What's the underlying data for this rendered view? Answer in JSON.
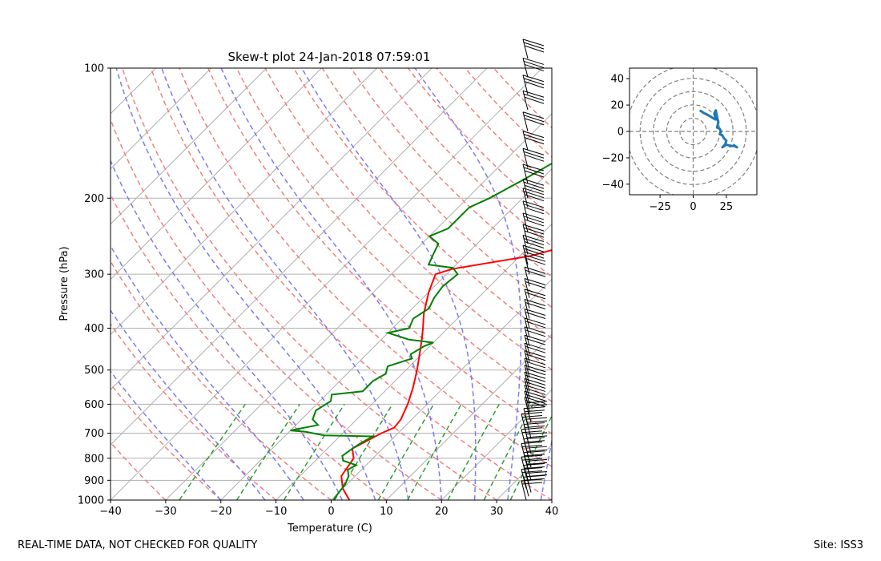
{
  "footer": {
    "left": "REAL-TIME DATA, NOT CHECKED FOR QUALITY",
    "right": "Site: ISS3"
  },
  "chart_data": [
    {
      "type": "skew-t",
      "title": "Skew-t plot 24-Jan-2018 07:59:01",
      "xlabel": "Temperature (C)",
      "ylabel": "Pressure (hPa)",
      "xlim": [
        -40,
        40
      ],
      "ylim": [
        1000,
        100
      ],
      "y_scale": "log",
      "xticks": [
        -40,
        -30,
        -20,
        -10,
        0,
        10,
        20,
        30,
        40
      ],
      "yticks": [
        100,
        200,
        300,
        400,
        500,
        600,
        700,
        800,
        900,
        1000
      ],
      "grid": true,
      "colors": {
        "temperature": "#ff0000",
        "dewpoint": "#008000",
        "dry_adiabats": "#f08080",
        "moist_adiabats": "#7b7bf0",
        "mixing_ratio": "#2ca02c",
        "isotherms": "#b0b0b0",
        "wind_barbs": "#000000"
      },
      "series": [
        {
          "name": "temperature",
          "points": [
            [
              1000,
              3.3
            ],
            [
              940,
              0
            ],
            [
              880,
              -2.5
            ],
            [
              800,
              -3.5
            ],
            [
              760,
              -5.5
            ],
            [
              700,
              -3
            ],
            [
              680,
              -1.7
            ],
            [
              650,
              -2
            ],
            [
              600,
              -3.5
            ],
            [
              550,
              -5.5
            ],
            [
              500,
              -8
            ],
            [
              450,
              -11
            ],
            [
              420,
              -13
            ],
            [
              400,
              -14.5
            ],
            [
              370,
              -17
            ],
            [
              330,
              -20
            ],
            [
              300,
              -22
            ],
            [
              292,
              -20
            ],
            [
              285,
              -16
            ],
            [
              272,
              -8
            ],
            [
              260,
              -4
            ],
            [
              245,
              1
            ],
            [
              230,
              3.5
            ],
            [
              200,
              9
            ],
            [
              180,
              14
            ],
            [
              160,
              17
            ],
            [
              150,
              19
            ],
            [
              140,
              21
            ],
            [
              130,
              24
            ],
            [
              120,
              27
            ],
            [
              110,
              30
            ],
            [
              100,
              35
            ]
          ]
        },
        {
          "name": "dewpoint",
          "points": [
            [
              1000,
              0.4
            ],
            [
              960,
              0
            ],
            [
              920,
              -0.3
            ],
            [
              880,
              -1.2
            ],
            [
              850,
              -2.5
            ],
            [
              830,
              -1.8
            ],
            [
              810,
              -5
            ],
            [
              790,
              -6
            ],
            [
              760,
              -5.5
            ],
            [
              740,
              -5
            ],
            [
              712,
              -4
            ],
            [
              708,
              -13
            ],
            [
              695,
              -17
            ],
            [
              690,
              -20
            ],
            [
              670,
              -16
            ],
            [
              650,
              -18
            ],
            [
              620,
              -19
            ],
            [
              590,
              -18
            ],
            [
              570,
              -19
            ],
            [
              560,
              -14
            ],
            [
              530,
              -14
            ],
            [
              510,
              -13
            ],
            [
              490,
              -14
            ],
            [
              470,
              -11
            ],
            [
              460,
              -12
            ],
            [
              440,
              -11
            ],
            [
              432,
              -10
            ],
            [
              425,
              -15
            ],
            [
              410,
              -20
            ],
            [
              400,
              -17
            ],
            [
              380,
              -18
            ],
            [
              360,
              -17
            ],
            [
              340,
              -18
            ],
            [
              320,
              -18.5
            ],
            [
              300,
              -18
            ],
            [
              290,
              -20
            ],
            [
              285,
              -25
            ],
            [
              270,
              -26
            ],
            [
              255,
              -27
            ],
            [
              245,
              -30
            ],
            [
              235,
              -28
            ],
            [
              220,
              -28
            ],
            [
              210,
              -28
            ],
            [
              200,
              -26
            ],
            [
              180,
              -23
            ],
            [
              160,
              -20
            ],
            [
              140,
              -16
            ],
            [
              120,
              -12
            ],
            [
              100,
              -6
            ]
          ]
        }
      ],
      "wind_barbs": {
        "description": "wind barbs along right edge from 1000 to ~95 hPa",
        "pressures": [
          1000,
          980,
          960,
          940,
          920,
          900,
          880,
          860,
          840,
          820,
          800,
          780,
          760,
          740,
          720,
          700,
          680,
          660,
          640,
          620,
          600,
          580,
          560,
          540,
          520,
          500,
          480,
          460,
          440,
          420,
          400,
          380,
          360,
          340,
          320,
          300,
          285,
          270,
          255,
          240,
          225,
          210,
          200,
          185,
          170,
          155,
          140,
          125,
          115,
          105,
          95
        ]
      }
    },
    {
      "type": "hodograph",
      "xlim": [
        -48,
        48
      ],
      "ylim": [
        -48,
        48
      ],
      "xticks": [
        -25,
        0,
        25
      ],
      "yticks": [
        -40,
        -20,
        0,
        20,
        40
      ],
      "rings": [
        10,
        20,
        30,
        40,
        50
      ],
      "series": [
        {
          "name": "hodograph",
          "color": "#1f77b4",
          "points": [
            [
              5,
              16
            ],
            [
              8,
              14
            ],
            [
              12,
              12
            ],
            [
              15,
              10
            ],
            [
              17,
              9
            ],
            [
              16,
              14
            ],
            [
              17,
              16
            ],
            [
              18,
              11
            ],
            [
              19,
              7
            ],
            [
              18,
              3
            ],
            [
              20,
              2
            ],
            [
              21,
              0
            ],
            [
              20,
              -2
            ],
            [
              22,
              -3
            ],
            [
              23,
              -5
            ],
            [
              25,
              -7
            ],
            [
              24,
              -10
            ],
            [
              22,
              -12
            ],
            [
              25,
              -10
            ],
            [
              28,
              -11
            ],
            [
              31,
              -11
            ],
            [
              33,
              -12
            ],
            [
              30,
              -10
            ]
          ]
        }
      ]
    }
  ]
}
